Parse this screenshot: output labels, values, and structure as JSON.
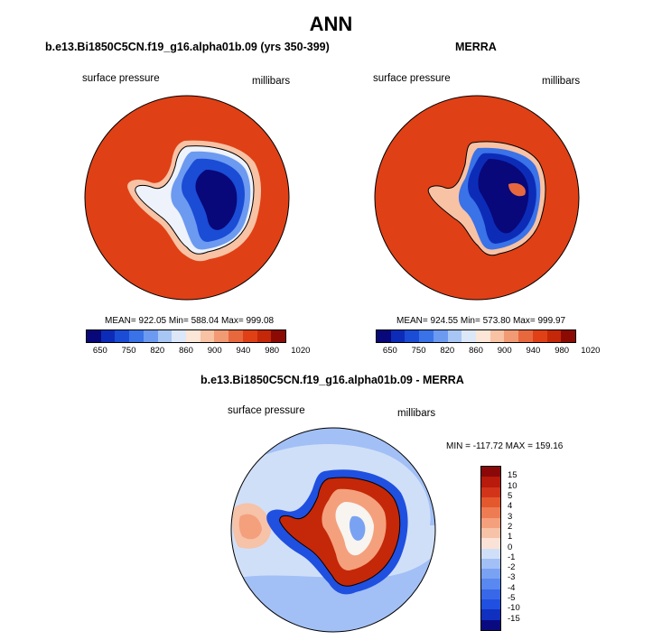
{
  "figure": {
    "title": "ANN"
  },
  "panels": [
    {
      "title": "b.e13.Bi1850C5CN.f19_g16.alpha01b.09 (yrs 350-399)",
      "variable": "surface pressure",
      "units": "millibars",
      "stats": "MEAN= 922.05  Min= 588.04  Max= 999.08"
    },
    {
      "title": "MERRA",
      "variable": "surface pressure",
      "units": "millibars",
      "stats": "MEAN= 924.55  Min= 573.80  Max= 999.97"
    },
    {
      "title": "b.e13.Bi1850C5CN.f19_g16.alpha01b.09 - MERRA",
      "variable": "surface pressure",
      "units": "millibars",
      "stats": "MIN = -117.72 MAX = 159.16"
    }
  ],
  "colorbar_abs": {
    "colors": [
      "#08087a",
      "#0c2cb8",
      "#1a4cd6",
      "#3a72e8",
      "#6c9af0",
      "#a8c6f4",
      "#dce8f8",
      "#fbe6d8",
      "#f8c2a4",
      "#f29a74",
      "#e8683e",
      "#e04016",
      "#c42808",
      "#8c0a04"
    ],
    "tick_labels": [
      "650",
      "750",
      "820",
      "860",
      "900",
      "940",
      "980",
      "1020"
    ],
    "tick_index": [
      1,
      3,
      5,
      7,
      9,
      11,
      13,
      15
    ]
  },
  "colorbar_diff": {
    "colors": [
      "#0a0a80",
      "#1030c0",
      "#2050e0",
      "#3868e8",
      "#5888f0",
      "#7aa2f2",
      "#a2c0f6",
      "#d0dff8",
      "#fbe2d6",
      "#f6c2a8",
      "#f4a07c",
      "#ee7c52",
      "#e4582e",
      "#d2341a",
      "#b81a0c",
      "#8a0808"
    ],
    "tick_labels": [
      "15",
      "10",
      "5",
      "4",
      "3",
      "2",
      "1",
      "0",
      "-1",
      "-2",
      "-3",
      "-4",
      "-5",
      "-10",
      "-15"
    ]
  }
}
